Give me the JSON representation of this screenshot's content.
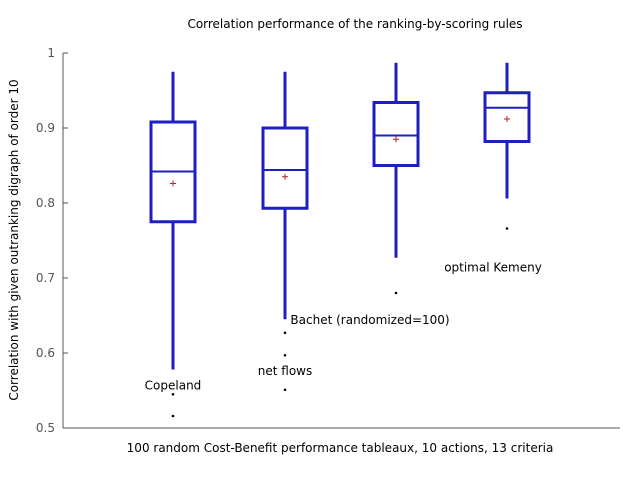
{
  "chart_data": {
    "type": "box",
    "title": "Correlation performance of the ranking-by-scoring rules",
    "xlabel": "100 random Cost-Benefit performance tableaux, 10 actions, 13 criteria",
    "ylabel": "Correlation with given outranking digraph of order 10",
    "ylim": [
      0.5,
      1.0
    ],
    "yticks": [
      "0.5",
      "0.6",
      "0.7",
      "0.8",
      "0.9",
      "1"
    ],
    "grid": false,
    "colors": {
      "box": "#1f1fbf",
      "mean_marker": "#b22222",
      "outlier": "#000000",
      "axis": "#555555"
    },
    "series": [
      {
        "name": "Copeland",
        "whisker_low": 0.578,
        "q1": 0.775,
        "median": 0.842,
        "q3": 0.908,
        "whisker_high": 0.975,
        "mean": 0.826,
        "outliers": [
          0.545,
          0.516
        ]
      },
      {
        "name": "net flows",
        "whisker_low": 0.645,
        "q1": 0.793,
        "median": 0.844,
        "q3": 0.9,
        "whisker_high": 0.975,
        "mean": 0.835,
        "outliers": [
          0.627,
          0.597,
          0.551
        ]
      },
      {
        "name": "Bachet (randomized=100)",
        "whisker_low": 0.727,
        "q1": 0.85,
        "median": 0.89,
        "q3": 0.934,
        "whisker_high": 0.987,
        "mean": 0.885,
        "outliers": [
          0.68
        ]
      },
      {
        "name": "optimal Kemeny",
        "whisker_low": 0.806,
        "q1": 0.882,
        "median": 0.927,
        "q3": 0.947,
        "whisker_high": 0.987,
        "mean": 0.912,
        "outliers": [
          0.766
        ]
      }
    ]
  }
}
